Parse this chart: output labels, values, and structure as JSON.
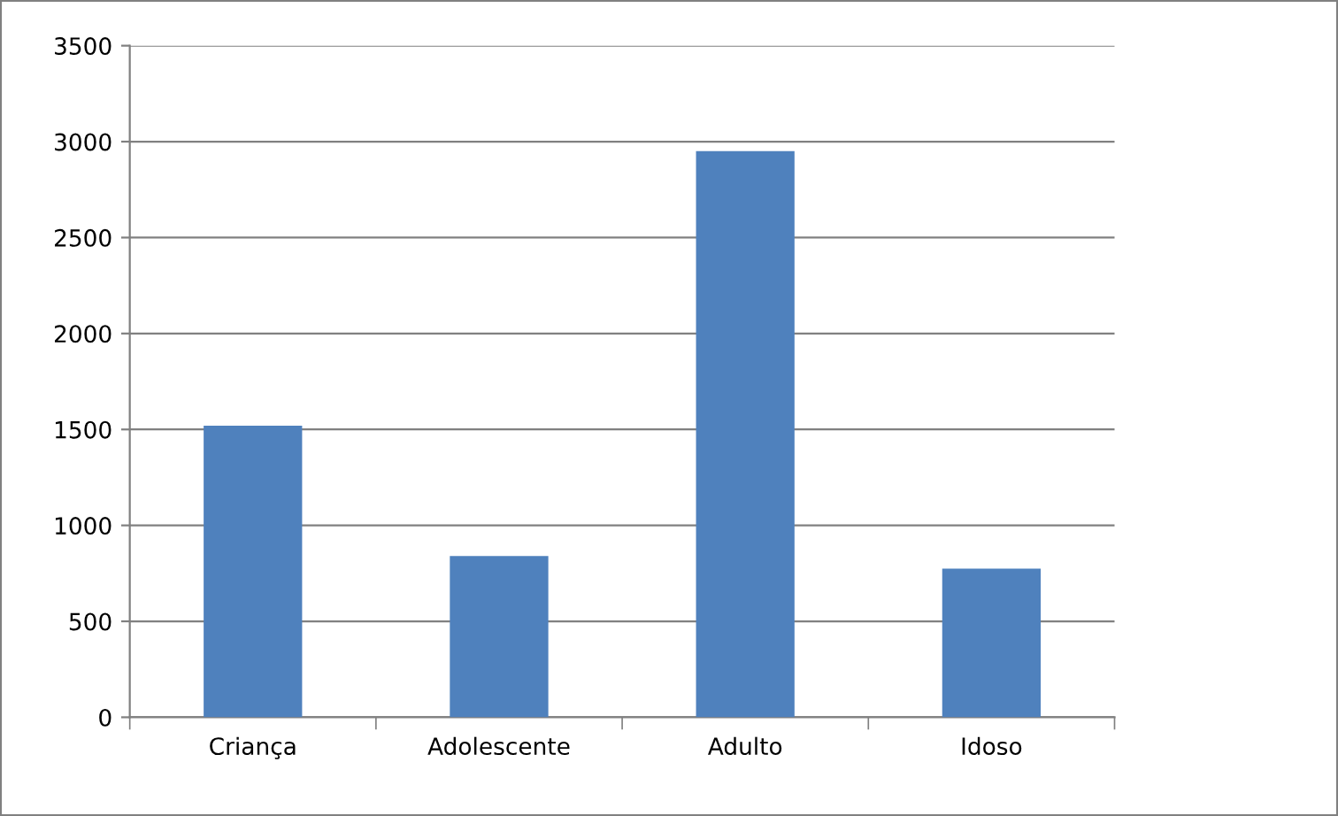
{
  "chart_data": {
    "type": "bar",
    "categories": [
      "Criança",
      "Adolescente",
      "Adulto",
      "Idoso"
    ],
    "values": [
      1520,
      840,
      2950,
      775
    ],
    "color": "#4f81bd",
    "ylim": [
      0,
      3500
    ],
    "yticks": [
      0,
      500,
      1000,
      1500,
      2000,
      2500,
      3000,
      3500
    ],
    "grid": "y",
    "legend": false
  }
}
